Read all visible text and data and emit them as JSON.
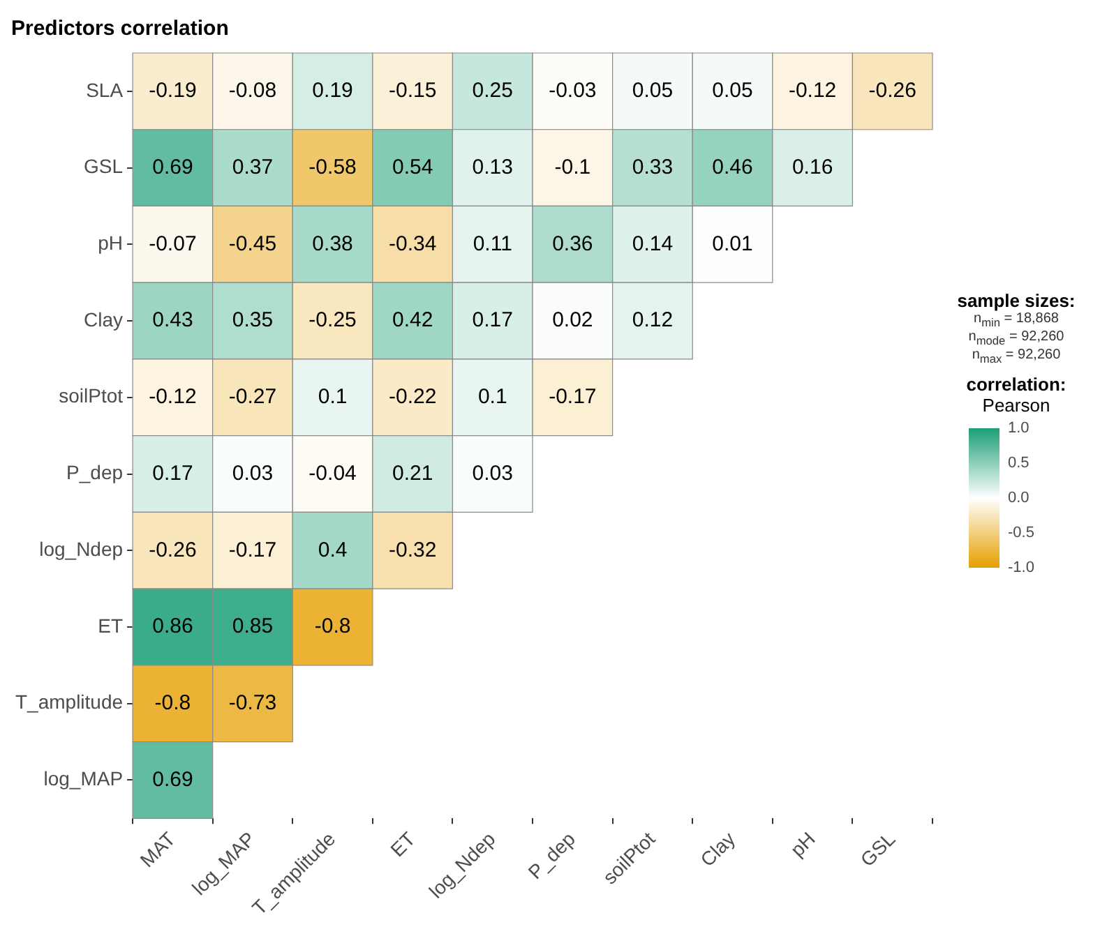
{
  "chart_data": {
    "type": "heatmap",
    "title": "Predictors correlation",
    "categories": [
      "MAT",
      "log_MAP",
      "T_amplitude",
      "ET",
      "log_Ndep",
      "P_dep",
      "soilPtot",
      "Clay",
      "pH",
      "GSL"
    ],
    "y_categories": [
      "SLA",
      "GSL",
      "pH",
      "Clay",
      "soilPtot",
      "P_dep",
      "log_Ndep",
      "ET",
      "T_amplitude",
      "log_MAP"
    ],
    "cells": [
      [
        -0.19,
        -0.08,
        0.19,
        -0.15,
        0.25,
        -0.03,
        0.05,
        0.05,
        -0.12,
        -0.26
      ],
      [
        0.69,
        0.37,
        -0.58,
        0.54,
        0.13,
        -0.1,
        0.33,
        0.46,
        0.16,
        null
      ],
      [
        -0.07,
        -0.45,
        0.38,
        -0.34,
        0.11,
        0.36,
        0.14,
        0.01,
        null,
        null
      ],
      [
        0.43,
        0.35,
        -0.25,
        0.42,
        0.17,
        0.02,
        0.12,
        null,
        null,
        null
      ],
      [
        -0.12,
        -0.27,
        0.1,
        -0.22,
        0.1,
        -0.17,
        null,
        null,
        null,
        null
      ],
      [
        0.17,
        0.03,
        -0.04,
        0.21,
        0.03,
        null,
        null,
        null,
        null,
        null
      ],
      [
        -0.26,
        -0.17,
        0.4,
        -0.32,
        null,
        null,
        null,
        null,
        null,
        null
      ],
      [
        0.86,
        0.85,
        -0.8,
        null,
        null,
        null,
        null,
        null,
        null,
        null
      ],
      [
        -0.8,
        -0.73,
        null,
        null,
        null,
        null,
        null,
        null,
        null,
        null
      ],
      [
        0.69,
        null,
        null,
        null,
        null,
        null,
        null,
        null,
        null,
        null
      ]
    ],
    "data_labels": true,
    "legend_title": "correlation:",
    "clabel": "Pearson",
    "clim": [
      -1,
      1
    ],
    "cticks": [
      {
        "value": -1,
        "label": "-1.0"
      },
      {
        "value": -0.5,
        "label": "-0.5"
      },
      {
        "value": 0,
        "label": "0.0"
      },
      {
        "value": 0.5,
        "label": "0.5"
      },
      {
        "value": 1,
        "label": "1.0"
      }
    ],
    "annotations": [
      "sample sizes:",
      "n$_{min}$ = 18,868",
      "n$_{mode}$ = 92,260",
      "n$_{max}$ = 92,260"
    ]
  }
}
